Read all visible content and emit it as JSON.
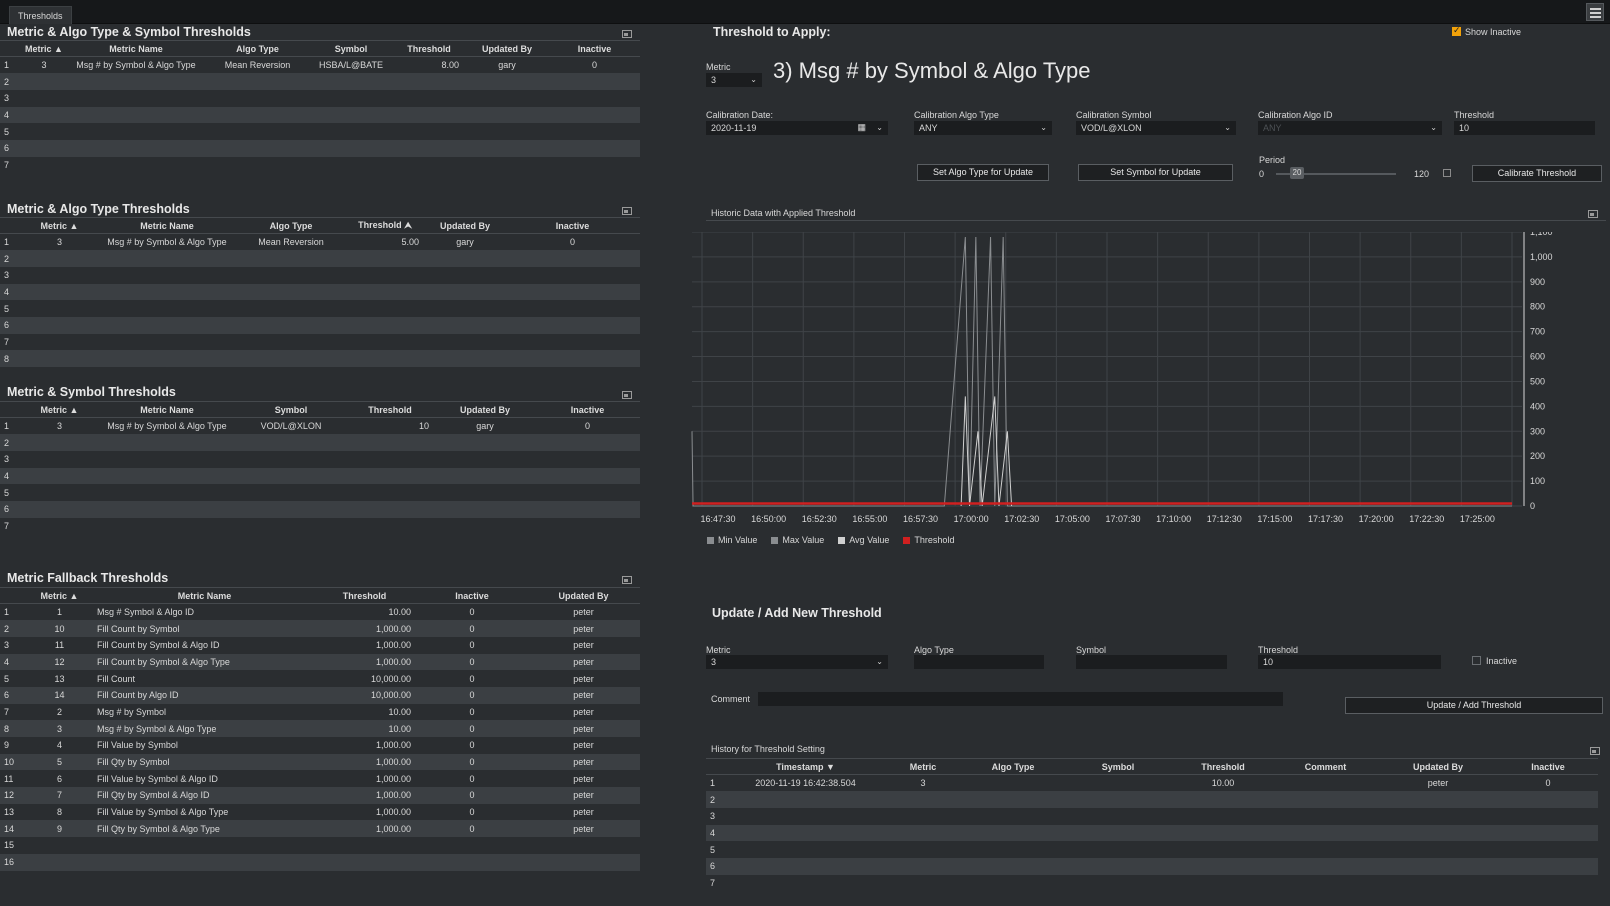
{
  "window": {
    "tab_label": "Thresholds"
  },
  "panel1": {
    "title": "Metric & Algo Type & Symbol Thresholds",
    "columns": [
      "Metric",
      "Metric Name",
      "Algo Type",
      "Symbol",
      "Threshold",
      "Updated By",
      "Inactive"
    ],
    "sort_indicator": "▲",
    "rows": [
      {
        "n": "1",
        "metric": "3",
        "name": "Msg # by Symbol & Algo Type",
        "algo": "Mean Reversion",
        "symbol": "HSBA/L@BATE",
        "threshold": "8.00",
        "by": "gary",
        "inactive": "0"
      },
      {
        "n": "2"
      },
      {
        "n": "3"
      },
      {
        "n": "4"
      },
      {
        "n": "5"
      },
      {
        "n": "6"
      },
      {
        "n": "7"
      }
    ]
  },
  "panel2": {
    "title": "Metric & Algo Type Thresholds",
    "columns": [
      "Metric",
      "Metric Name",
      "Algo Type",
      "Threshold",
      "Updated By",
      "Inactive"
    ],
    "rows": [
      {
        "n": "1",
        "metric": "3",
        "name": "Msg # by Symbol & Algo Type",
        "algo": "Mean Reversion",
        "threshold": "5.00",
        "by": "gary",
        "inactive": "0"
      },
      {
        "n": "2"
      },
      {
        "n": "3"
      },
      {
        "n": "4"
      },
      {
        "n": "5"
      },
      {
        "n": "6"
      },
      {
        "n": "7"
      },
      {
        "n": "8"
      }
    ]
  },
  "panel3": {
    "title": "Metric & Symbol Thresholds",
    "columns": [
      "Metric",
      "Metric Name",
      "Symbol",
      "Threshold",
      "Updated By",
      "Inactive"
    ],
    "rows": [
      {
        "n": "1",
        "metric": "3",
        "name": "Msg # by Symbol & Algo Type",
        "symbol": "VOD/L@XLON",
        "threshold": "10",
        "by": "gary",
        "inactive": "0"
      },
      {
        "n": "2"
      },
      {
        "n": "3"
      },
      {
        "n": "4"
      },
      {
        "n": "5"
      },
      {
        "n": "6"
      },
      {
        "n": "7"
      }
    ]
  },
  "panel4": {
    "title": "Metric Fallback Thresholds",
    "columns": [
      "Metric",
      "Metric Name",
      "Threshold",
      "Inactive",
      "Updated By"
    ],
    "rows": [
      {
        "n": "1",
        "metric": "1",
        "name": "Msg # Symbol & Algo ID",
        "threshold": "10.00",
        "inactive": "0",
        "by": "peter"
      },
      {
        "n": "2",
        "metric": "10",
        "name": "Fill Count by Symbol",
        "threshold": "1,000.00",
        "inactive": "0",
        "by": "peter"
      },
      {
        "n": "3",
        "metric": "11",
        "name": "Fill Count by Symbol & Algo ID",
        "threshold": "1,000.00",
        "inactive": "0",
        "by": "peter"
      },
      {
        "n": "4",
        "metric": "12",
        "name": "Fill Count by Symbol & Algo Type",
        "threshold": "1,000.00",
        "inactive": "0",
        "by": "peter"
      },
      {
        "n": "5",
        "metric": "13",
        "name": "Fill Count",
        "threshold": "10,000.00",
        "inactive": "0",
        "by": "peter"
      },
      {
        "n": "6",
        "metric": "14",
        "name": "Fill Count by Algo ID",
        "threshold": "10,000.00",
        "inactive": "0",
        "by": "peter"
      },
      {
        "n": "7",
        "metric": "2",
        "name": "Msg # by Symbol",
        "threshold": "10.00",
        "inactive": "0",
        "by": "peter"
      },
      {
        "n": "8",
        "metric": "3",
        "name": "Msg # by Symbol & Algo Type",
        "threshold": "10.00",
        "inactive": "0",
        "by": "peter"
      },
      {
        "n": "9",
        "metric": "4",
        "name": "Fill Value by Symbol",
        "threshold": "1,000.00",
        "inactive": "0",
        "by": "peter"
      },
      {
        "n": "10",
        "metric": "5",
        "name": "Fill Qty by Symbol",
        "threshold": "1,000.00",
        "inactive": "0",
        "by": "peter"
      },
      {
        "n": "11",
        "metric": "6",
        "name": "Fill Value by Symbol & Algo ID",
        "threshold": "1,000.00",
        "inactive": "0",
        "by": "peter"
      },
      {
        "n": "12",
        "metric": "7",
        "name": "Fill Qty by Symbol & Algo ID",
        "threshold": "1,000.00",
        "inactive": "0",
        "by": "peter"
      },
      {
        "n": "13",
        "metric": "8",
        "name": "Fill Value by Symbol & Algo Type",
        "threshold": "1,000.00",
        "inactive": "0",
        "by": "peter"
      },
      {
        "n": "14",
        "metric": "9",
        "name": "Fill Qty by Symbol & Algo Type",
        "threshold": "1,000.00",
        "inactive": "0",
        "by": "peter"
      },
      {
        "n": "15"
      },
      {
        "n": "16"
      }
    ]
  },
  "apply": {
    "title": "Threshold to Apply:",
    "show_inactive_label": "Show Inactive",
    "show_inactive_checked": true,
    "metric_label": "Metric",
    "metric_value": "3",
    "metric_heading": "3) Msg # by Symbol & Algo Type",
    "calibration_date_label": "Calibration Date:",
    "calibration_date_value": "2020-11-19",
    "calibration_algo_type_label": "Calibration Algo Type",
    "calibration_algo_type_value": "ANY",
    "calibration_symbol_label": "Calibration Symbol",
    "calibration_symbol_value": "VOD/L@XLON",
    "calibration_algo_id_label": "Calibration Algo ID",
    "calibration_algo_id_value": "ANY",
    "threshold_label": "Threshold",
    "threshold_value": "10",
    "set_algo_btn": "Set Algo Type for Update",
    "set_symbol_btn": "Set Symbol for Update",
    "period_label": "Period",
    "period_min": "0",
    "period_value": "20",
    "period_max": "120",
    "calibrate_btn": "Calibrate Threshold"
  },
  "chart_panel": {
    "title": "Historic Data with Applied Threshold"
  },
  "chart_data": {
    "type": "line",
    "x_ticks": [
      "16:47:30",
      "16:50:00",
      "16:52:30",
      "16:55:00",
      "16:57:30",
      "17:00:00",
      "17:02:30",
      "17:05:00",
      "17:07:30",
      "17:10:00",
      "17:12:30",
      "17:15:00",
      "17:17:30",
      "17:20:00",
      "17:22:30",
      "17:25:00"
    ],
    "y_ticks": [
      "0",
      "100",
      "200",
      "300",
      "400",
      "500",
      "600",
      "700",
      "800",
      "900",
      "1,000",
      "1,100"
    ],
    "ylim": [
      0,
      1100
    ],
    "x_range_minutes": [
      0,
      39
    ],
    "legend_position": "bottom-left",
    "grid": true,
    "series": [
      {
        "name": "Min Value",
        "color": "#8a8d90",
        "values": []
      },
      {
        "name": "Max Value",
        "color": "#8a8d90",
        "values": [
          [
            0,
            300
          ],
          [
            0.05,
            0
          ],
          [
            11.5,
            0
          ],
          [
            12.0,
            0
          ],
          [
            13.0,
            1080
          ],
          [
            13.2,
            0
          ],
          [
            13.5,
            1080
          ],
          [
            13.7,
            0
          ],
          [
            14.2,
            1080
          ],
          [
            14.4,
            0
          ],
          [
            14.8,
            1080
          ],
          [
            15.0,
            0
          ],
          [
            39,
            0
          ]
        ]
      },
      {
        "name": "Avg Value",
        "color": "#d0d0d0",
        "values": [
          [
            12.8,
            0
          ],
          [
            13.0,
            440
          ],
          [
            13.2,
            0
          ],
          [
            13.6,
            300
          ],
          [
            13.8,
            0
          ],
          [
            14.4,
            440
          ],
          [
            14.6,
            0
          ],
          [
            15.0,
            300
          ],
          [
            15.2,
            0
          ]
        ]
      },
      {
        "name": "Threshold",
        "color": "#d02020",
        "values": [
          [
            0,
            10
          ],
          [
            39,
            10
          ]
        ]
      }
    ]
  },
  "update": {
    "title": "Update / Add New Threshold",
    "metric_label": "Metric",
    "metric_value": "3",
    "algo_type_label": "Algo Type",
    "algo_type_value": "",
    "symbol_label": "Symbol",
    "symbol_value": "",
    "threshold_label": "Threshold",
    "threshold_value": "10",
    "inactive_label": "Inactive",
    "comment_label": "Comment",
    "comment_value": "",
    "submit_btn": "Update / Add Threshold"
  },
  "history": {
    "title": "History for Threshold Setting",
    "columns": [
      "Timestamp",
      "Metric",
      "Algo Type",
      "Symbol",
      "Threshold",
      "Comment",
      "Updated By",
      "Inactive"
    ],
    "rows": [
      {
        "n": "1",
        "ts": "2020-11-19 16:42:38.504",
        "metric": "3",
        "algo": "",
        "symbol": "",
        "threshold": "10.00",
        "comment": "",
        "by": "peter",
        "inactive": "0"
      },
      {
        "n": "2"
      },
      {
        "n": "3"
      },
      {
        "n": "4"
      },
      {
        "n": "5"
      },
      {
        "n": "6"
      },
      {
        "n": "7"
      }
    ]
  },
  "colors": {
    "background": "#2a2d30",
    "stripe": "#3b3f43",
    "accent": "#f2a20a",
    "threshold": "#d02020"
  }
}
